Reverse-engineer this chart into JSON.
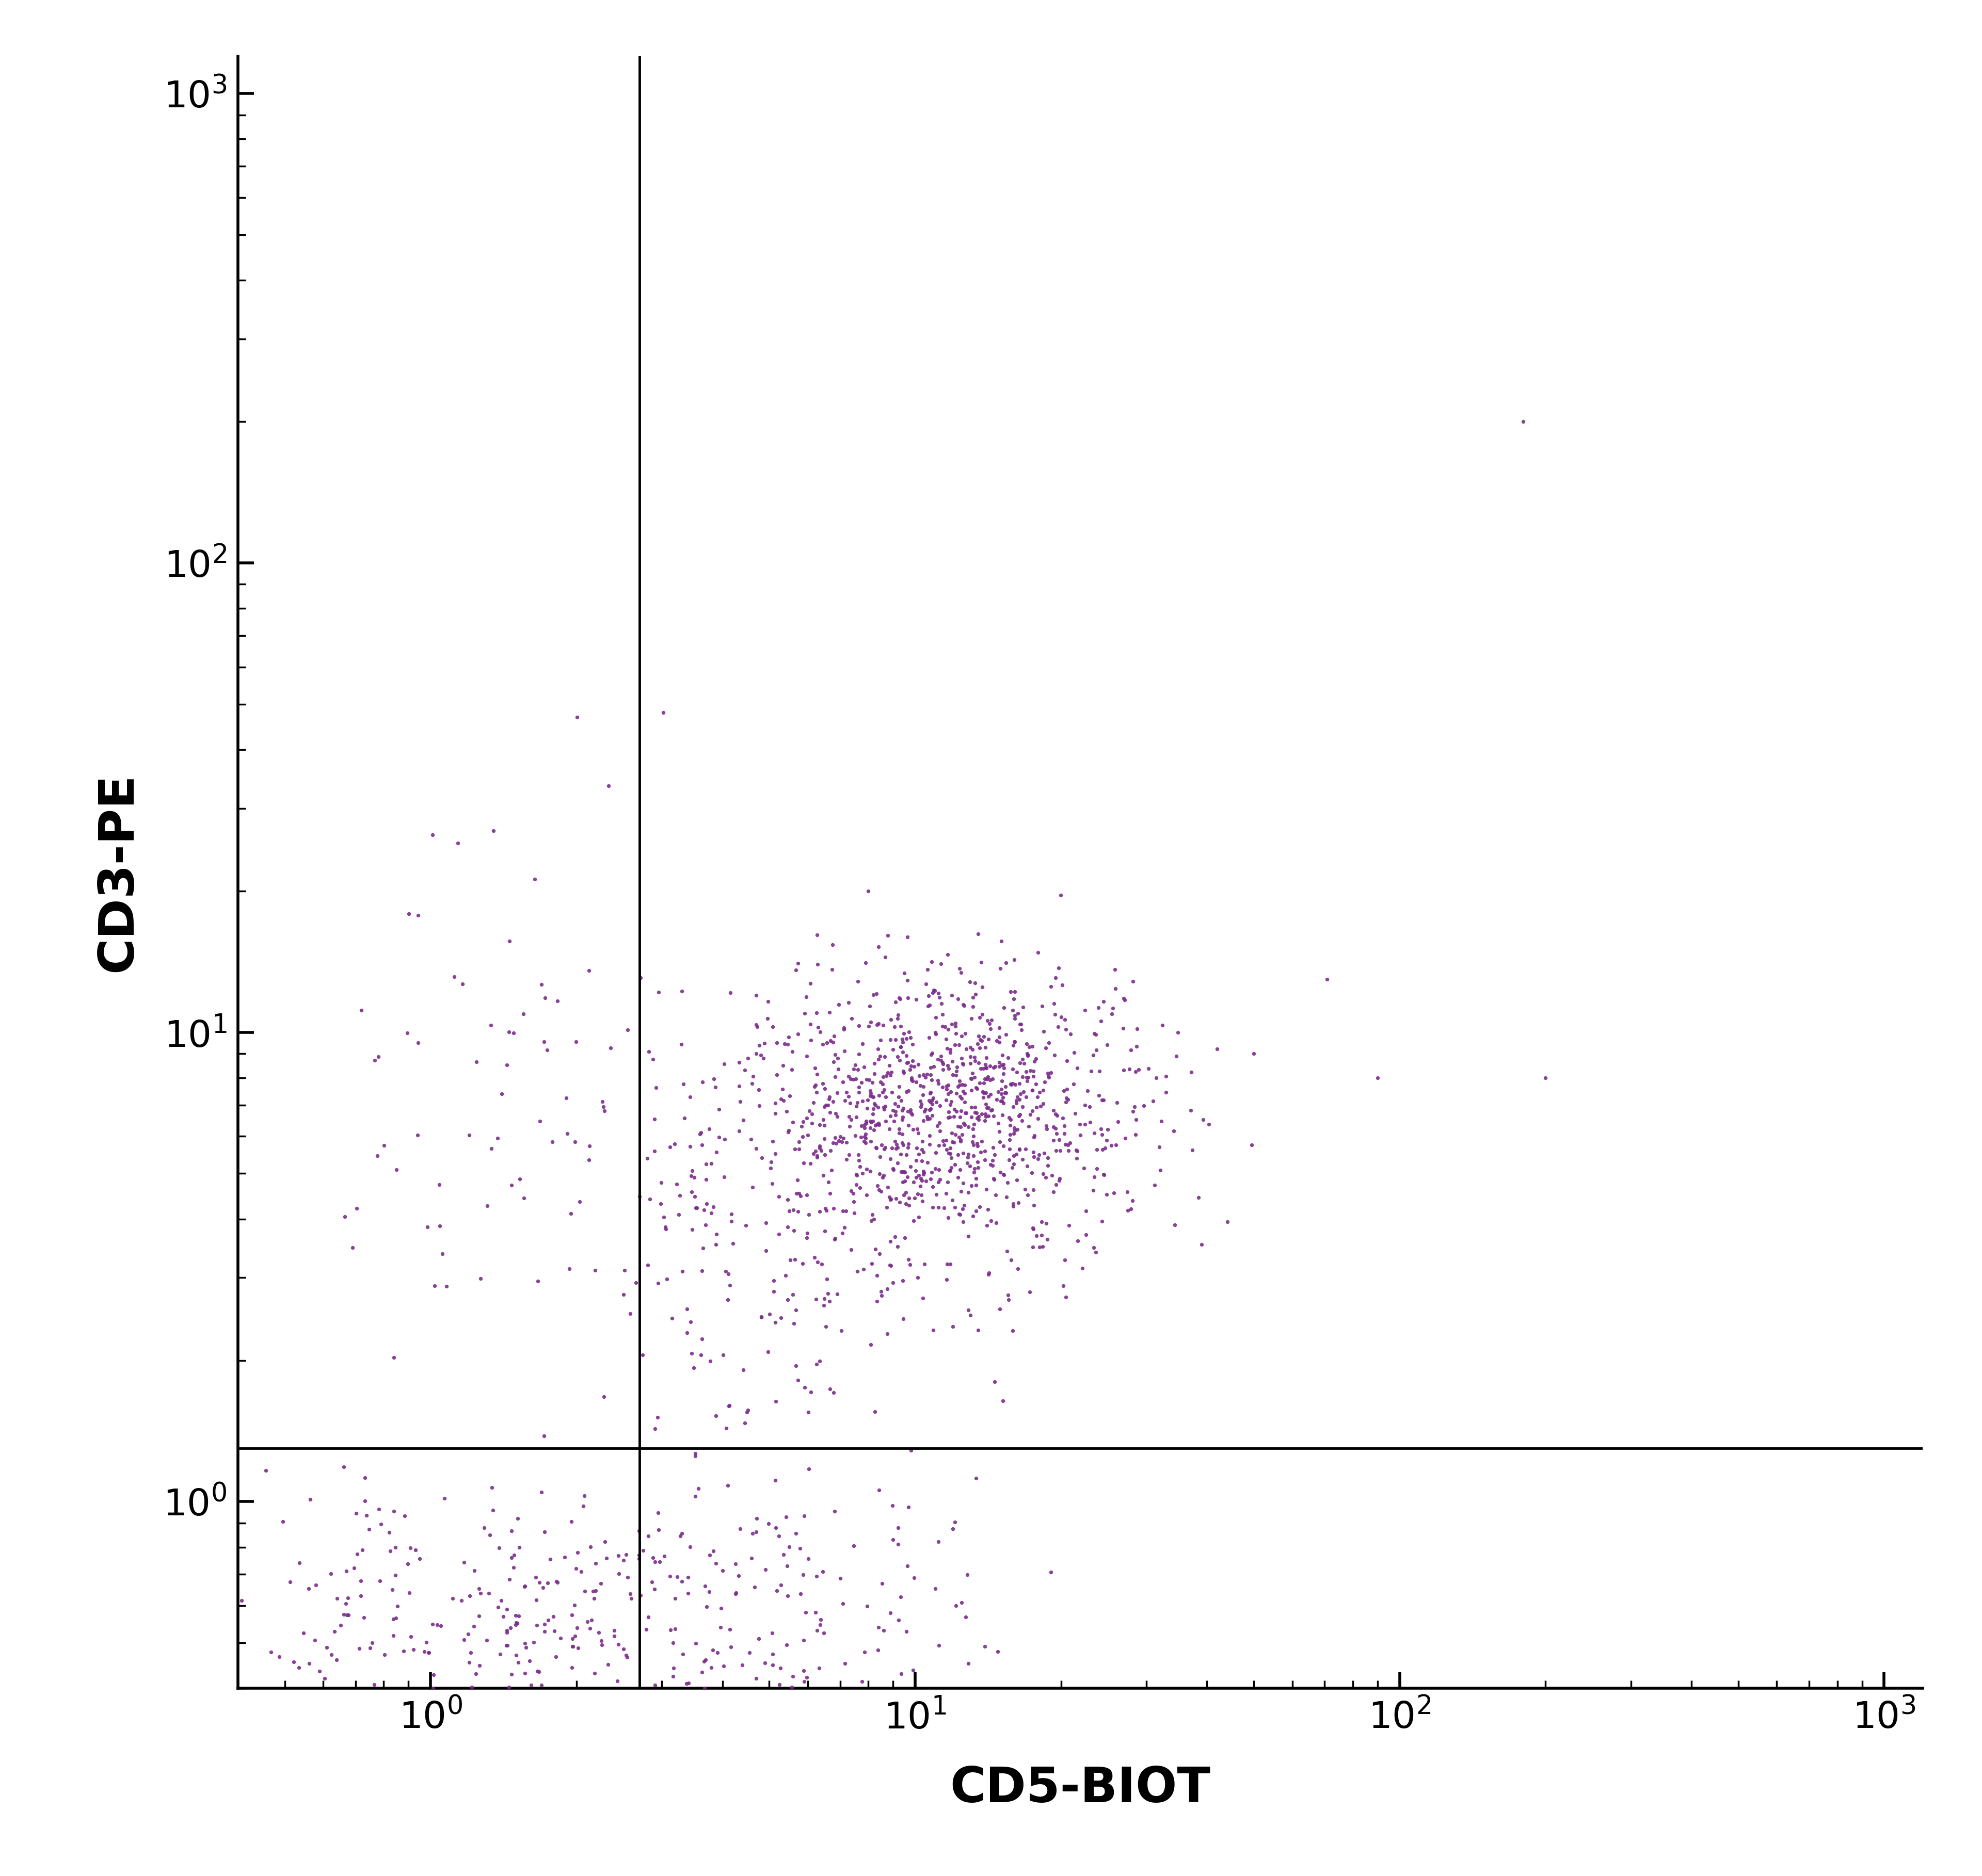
{
  "xlabel": "CD5-BIOT",
  "ylabel": "CD3-PE",
  "dot_color": "#7B2D8B",
  "dot_size": 3.5,
  "alpha": 0.9,
  "xlim": [
    0.4,
    1200
  ],
  "ylim": [
    0.4,
    1200
  ],
  "xline": 2.7,
  "yline": 1.3,
  "background_color": "#ffffff",
  "axis_color": "#000000",
  "tick_fontsize": 52,
  "label_fontsize": 68,
  "linewidth_axis": 4.0,
  "quadrant_linewidth": 3.5,
  "seed": 42
}
